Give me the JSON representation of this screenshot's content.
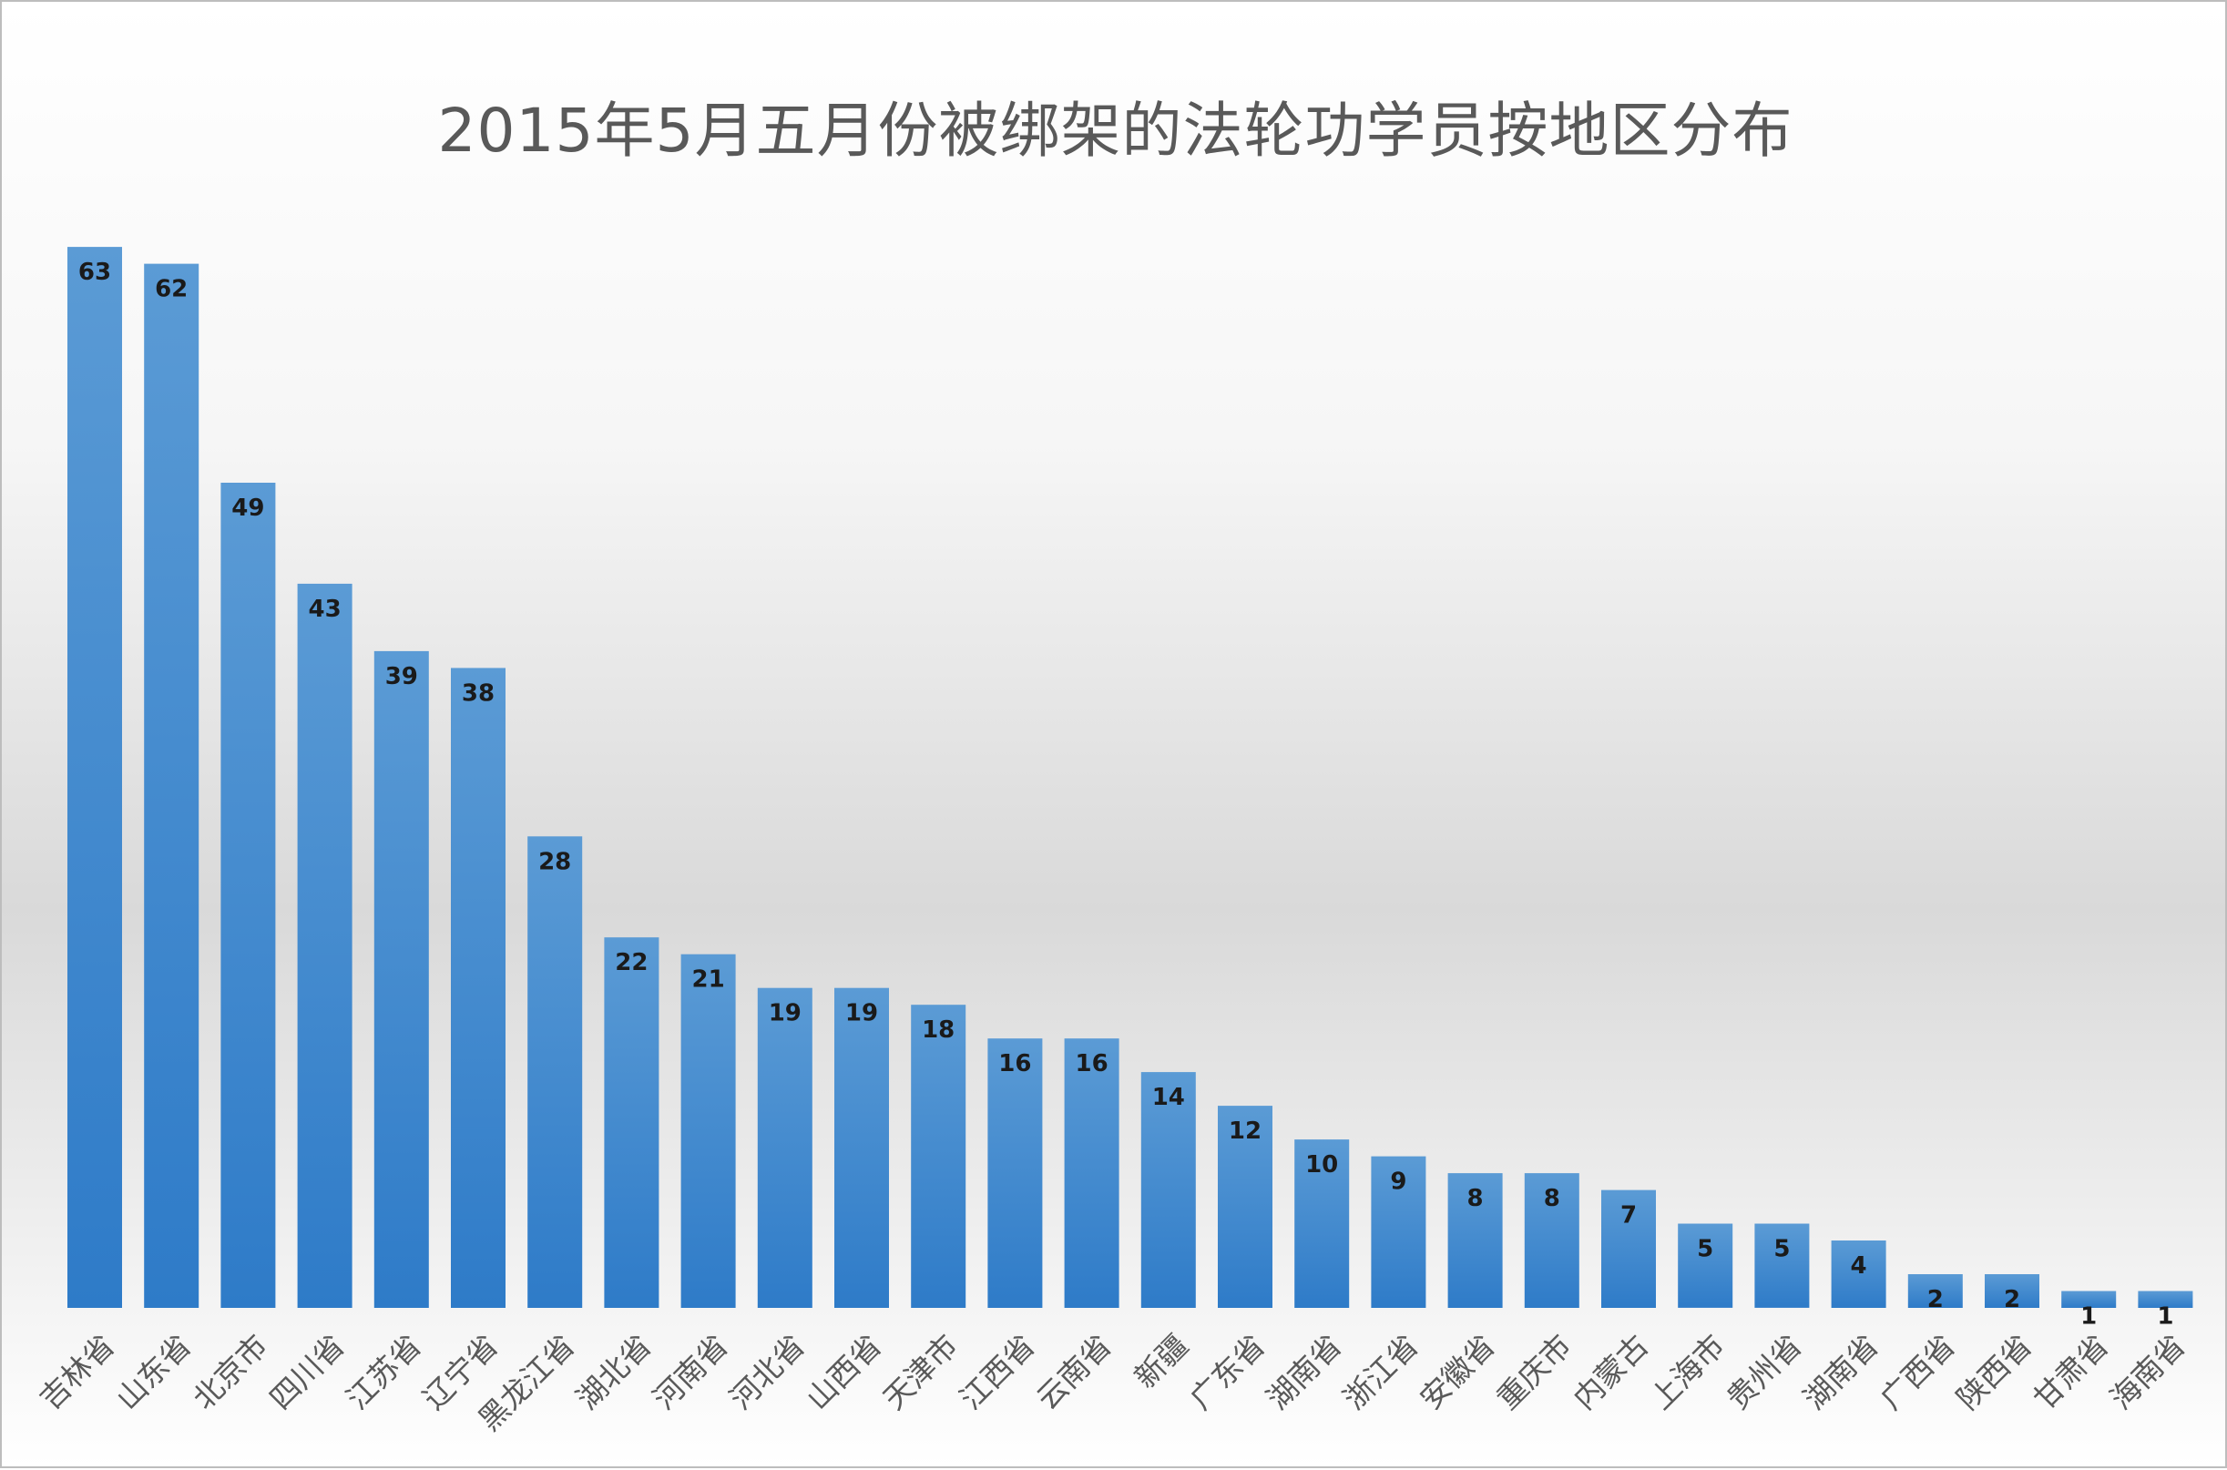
{
  "chart_data": {
    "type": "bar",
    "title": "2015年5月五月份被绑架的法轮功学员按地区分布",
    "xlabel": "",
    "ylabel": "",
    "ylim": [
      0,
      63
    ],
    "grid": false,
    "legend": "none",
    "categories": [
      "吉林省",
      "山东省",
      "北京市",
      "四川省",
      "江苏省",
      "辽宁省",
      "黑龙江省",
      "湖北省",
      "河南省",
      "河北省",
      "山西省",
      "天津市",
      "江西省",
      "云南省",
      "新疆",
      "广东省",
      "湖南省",
      "浙江省",
      "安徽省",
      "重庆市",
      "内蒙古",
      "上海市",
      "贵州省",
      "湖南省",
      "广西省",
      "陕西省",
      "甘肃省",
      "海南省"
    ],
    "values": [
      63,
      62,
      49,
      43,
      39,
      38,
      28,
      22,
      21,
      19,
      19,
      18,
      16,
      16,
      14,
      12,
      10,
      9,
      8,
      8,
      7,
      5,
      5,
      4,
      2,
      2,
      1,
      1
    ],
    "bar_color_top": "#5b9bd5",
    "bar_color_bottom": "#2e7bc8",
    "data_labels": true
  }
}
